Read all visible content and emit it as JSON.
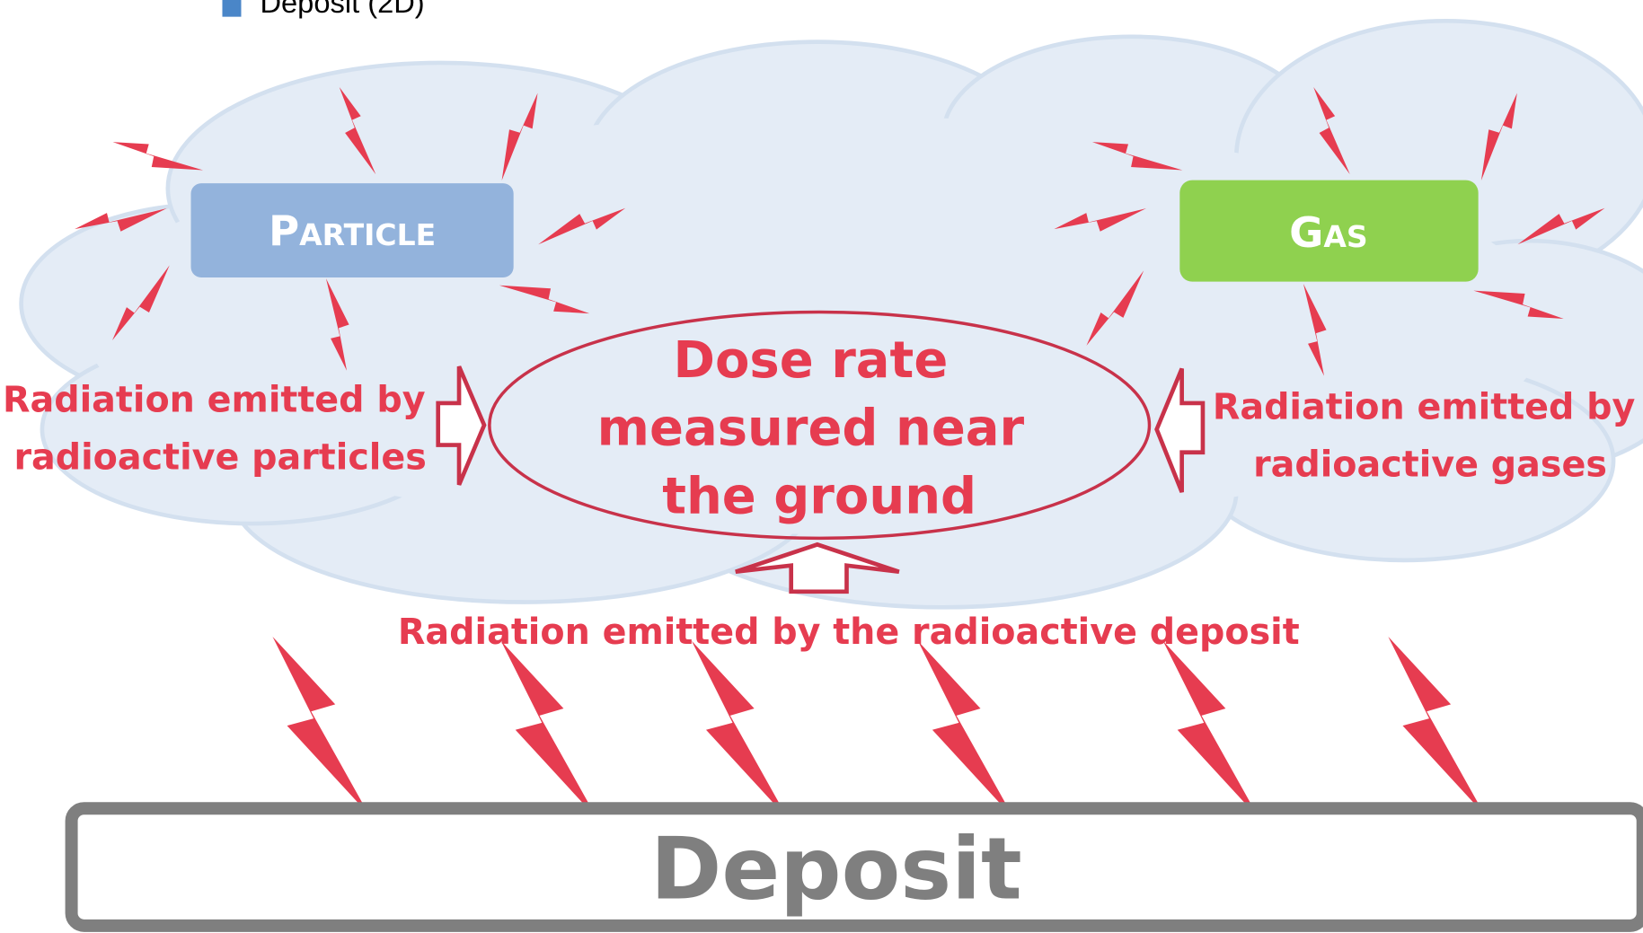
{
  "legend": {
    "label": "Deposit (2D)"
  },
  "particle": {
    "box_label": "Particle",
    "radiation_label": [
      "Radiation emitted by",
      "radioactive particles"
    ]
  },
  "gas": {
    "box_label": "Gas",
    "radiation_label": [
      "Radiation emitted by",
      "radioactive gases"
    ]
  },
  "center": {
    "label": [
      "Dose rate",
      "measured near",
      "the ground"
    ]
  },
  "deposit": {
    "radiation_label": "Radiation emitted by the radioactive deposit",
    "label": "Deposit"
  }
}
